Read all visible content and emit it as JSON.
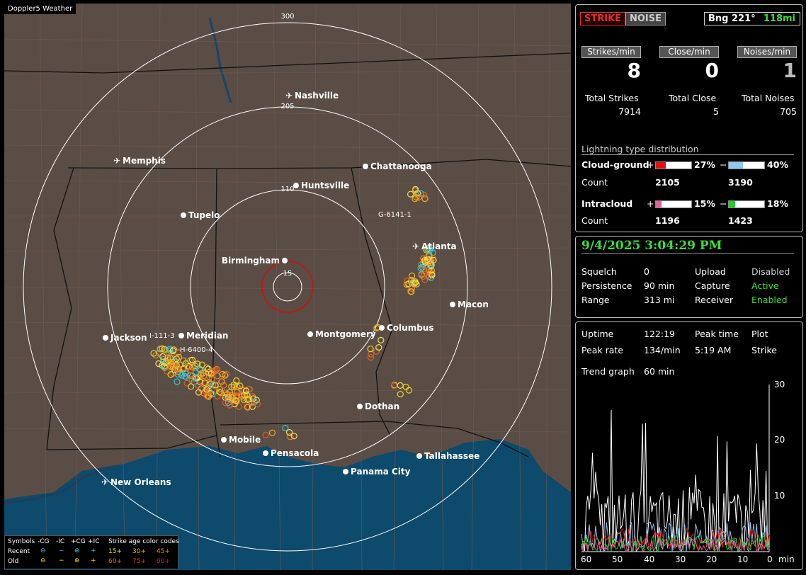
{
  "app_title": "Doppler5 Weather",
  "modes": {
    "strike": "STRIKE",
    "noise": "NOISE"
  },
  "bearing": {
    "label": "Bng 221°",
    "distance": "118mi"
  },
  "rate_headers": {
    "strikes": "Strikes/min",
    "close": "Close/min",
    "noises": "Noises/min"
  },
  "rates": {
    "strikes": "8",
    "close": "0",
    "noises": "1"
  },
  "totals_labels": {
    "strikes": "Total Strikes",
    "close": "Total Close",
    "noises": "Total Noises"
  },
  "totals": {
    "strikes": "7914",
    "close": "5",
    "noises": "705"
  },
  "distribution": {
    "title": "Lightning type distribution",
    "cg_label": "Cloud-ground",
    "ic_label": "Intracloud",
    "count_label": "Count",
    "plus": "+",
    "minus": "−",
    "cg_pos_pct": "27%",
    "cg_neg_pct": "40%",
    "cg_pos_count": "2105",
    "cg_neg_count": "3190",
    "ic_pos_pct": "15%",
    "ic_neg_pct": "18%",
    "ic_pos_count": "1196",
    "ic_neg_count": "1423",
    "cg_pos_val": 27,
    "cg_neg_val": 40,
    "ic_pos_val": 15,
    "ic_neg_val": 18,
    "colors": {
      "cg_pos": "#e01010",
      "cg_neg": "#8cc8f0",
      "ic_pos": "#e060a0",
      "ic_neg": "#20d020"
    }
  },
  "datetime": "9/4/2025 3:04:29 PM",
  "settings": {
    "squelch_label": "Squelch",
    "squelch": "0",
    "persistence_label": "Persistence",
    "persistence": "90 min",
    "range_label": "Range",
    "range": "313 mi",
    "upload_label": "Upload",
    "upload": "Disabled",
    "capture_label": "Capture",
    "capture": "Active",
    "receiver_label": "Receiver",
    "receiver": "Enabled"
  },
  "stats": {
    "uptime_label": "Uptime",
    "uptime": "122:19",
    "peak_time_label": "Peak time",
    "peak_time": "5:19 AM",
    "plot_label": "Plot",
    "plot": "Strike",
    "peak_rate_label": "Peak rate",
    "peak_rate": "134/min",
    "trend_label": "Trend graph",
    "trend": "60 min"
  },
  "trend_axis": {
    "y_ticks": [
      "30",
      "20",
      "10"
    ],
    "x_ticks": [
      "60",
      "50",
      "40",
      "30",
      "20",
      "10",
      "0"
    ],
    "x_unit": "min"
  },
  "map": {
    "range_ring_labels": [
      "15",
      "110",
      "205",
      "300"
    ],
    "cities": [
      {
        "name": "Nashville",
        "airport": true
      },
      {
        "name": "Memphis",
        "airport": true
      },
      {
        "name": "Chattanooga"
      },
      {
        "name": "Huntsville"
      },
      {
        "name": "Tupelo"
      },
      {
        "name": "Birmingham"
      },
      {
        "name": "Atlanta",
        "airport": true
      },
      {
        "name": "Macon"
      },
      {
        "name": "Jackson"
      },
      {
        "name": "Meridian"
      },
      {
        "name": "Montgomery"
      },
      {
        "name": "Columbus"
      },
      {
        "name": "Dothan"
      },
      {
        "name": "Mobile"
      },
      {
        "name": "Pensacola"
      },
      {
        "name": "Tallahassee"
      },
      {
        "name": "Panama City"
      },
      {
        "name": "New Orleans",
        "airport": true
      }
    ],
    "storm_labels": [
      "G-6141-1",
      "H-6400-4",
      "I-111-3"
    ]
  },
  "legend": {
    "symbols_label": "Symbols",
    "cg_neg": "-CG",
    "ic_neg": "-IC",
    "cg_pos": "+CG",
    "ic_pos": "+IC",
    "age_label": "Strike age color codes",
    "recent_label": "Recent",
    "old_label": "Old",
    "recent_ages": [
      "15+",
      "30+",
      "45+"
    ],
    "old_ages": [
      "60+",
      "75+",
      "90+"
    ]
  }
}
